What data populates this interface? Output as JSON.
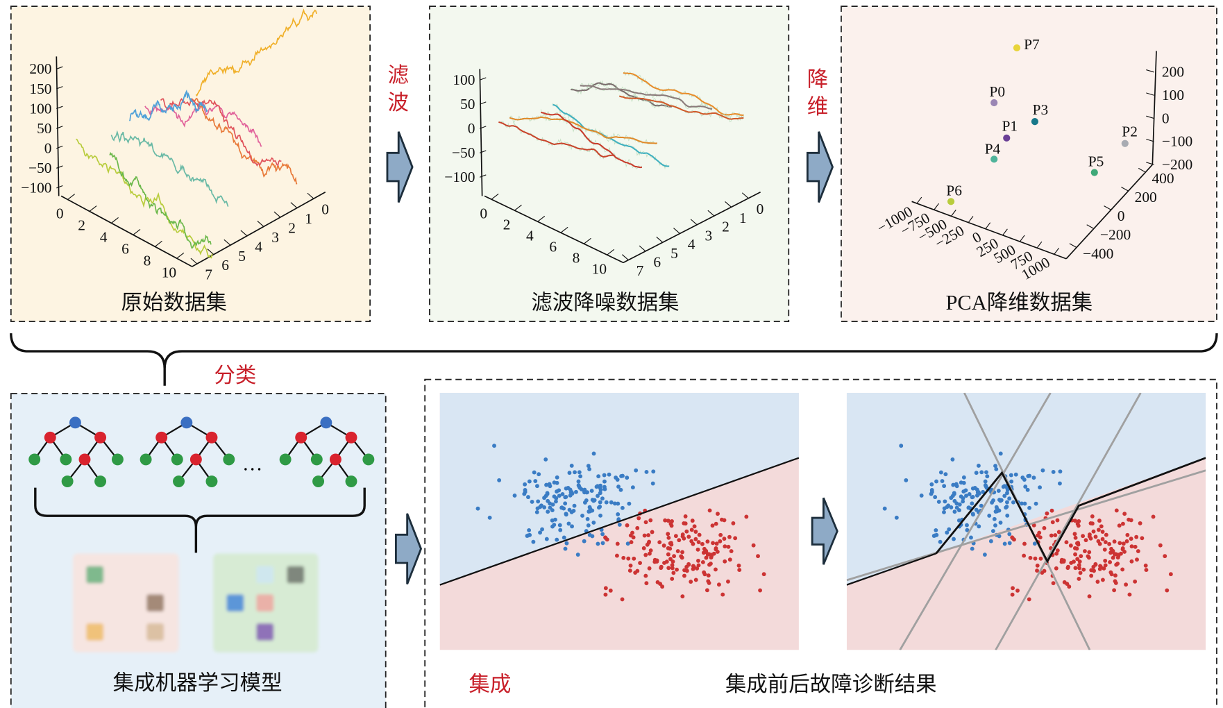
{
  "panels": {
    "raw": {
      "title": "原始数据集",
      "z_ticks": [
        "200",
        "150",
        "100",
        "50",
        "0",
        "−50",
        "−100"
      ],
      "x_ticks": [
        "0",
        "2",
        "4",
        "6",
        "8",
        "10"
      ],
      "y_ticks": [
        "7",
        "6",
        "5",
        "4",
        "3",
        "2",
        "1",
        "0"
      ]
    },
    "filtered": {
      "title": "滤波降噪数据集",
      "z_ticks": [
        "100",
        "50",
        "0",
        "−50",
        "−100"
      ],
      "x_ticks": [
        "0",
        "2",
        "4",
        "6",
        "8",
        "10"
      ],
      "y_ticks": [
        "7",
        "6",
        "5",
        "4",
        "3",
        "2",
        "1",
        "0"
      ]
    },
    "pca": {
      "title": "PCA降维数据集",
      "z_ticks": [
        "200",
        "100",
        "0",
        "−100",
        "−200"
      ],
      "x_ticks": [
        "−1000",
        "−750",
        "−500",
        "−250",
        "0",
        "250",
        "500",
        "750",
        "1000"
      ],
      "y_ticks": [
        "400",
        "200",
        "0",
        "−200",
        "−400"
      ],
      "points": [
        {
          "label": "P7",
          "color": "#e8d43a"
        },
        {
          "label": "P0",
          "color": "#9a86b4"
        },
        {
          "label": "P3",
          "color": "#17788a"
        },
        {
          "label": "P1",
          "color": "#6a3f96"
        },
        {
          "label": "P2",
          "color": "#a8abb2"
        },
        {
          "label": "P4",
          "color": "#4fb39a"
        },
        {
          "label": "P5",
          "color": "#3fa878"
        },
        {
          "label": "P6",
          "color": "#b8cc3c"
        }
      ]
    },
    "model": {
      "title": "集成机器学习模型",
      "ellipsis": "…"
    },
    "result": {
      "title": "集成前后故障诊断结果",
      "tag": "集成"
    }
  },
  "steps": {
    "filter": [
      "滤",
      "波"
    ],
    "reduce": [
      "降",
      "维"
    ],
    "classify": "分类"
  },
  "colors": {
    "accent_red": "#c8202a",
    "arrow": "#8eaac6",
    "blue_class": "#3a7cc4",
    "red_class": "#cc3333"
  }
}
